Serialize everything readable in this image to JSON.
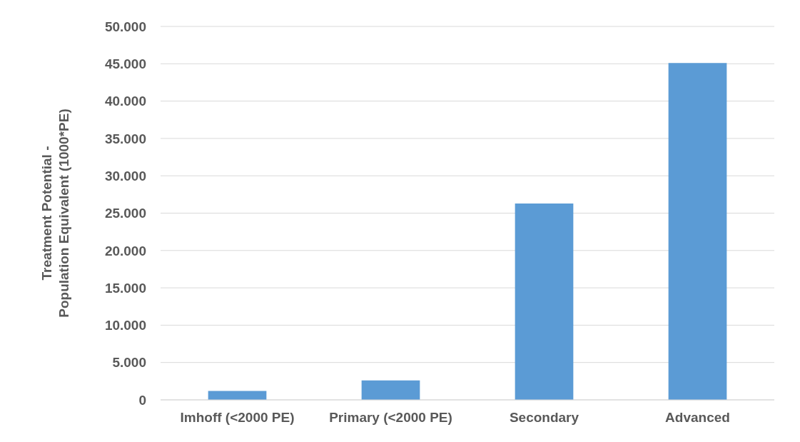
{
  "chart_data": {
    "type": "bar",
    "ylabel": "Treatment Potential -\nPopulation Equivalent (1000*PE)",
    "categories": [
      "Imhoff (<2000 PE)",
      "Primary (<2000 PE)",
      "Secondary",
      "Advanced"
    ],
    "values": [
      1200,
      2600,
      26300,
      45100
    ],
    "color": "#5b9bd5",
    "ylim": [
      0,
      50000
    ],
    "yticks": [
      {
        "value": 0,
        "label": "0"
      },
      {
        "value": 5000,
        "label": "5.000"
      },
      {
        "value": 10000,
        "label": "10.000"
      },
      {
        "value": 15000,
        "label": "15.000"
      },
      {
        "value": 20000,
        "label": "20.000"
      },
      {
        "value": 25000,
        "label": "25.000"
      },
      {
        "value": 30000,
        "label": "30.000"
      },
      {
        "value": 35000,
        "label": "35.000"
      },
      {
        "value": 40000,
        "label": "40.000"
      },
      {
        "value": 45000,
        "label": "45.000"
      },
      {
        "value": 50000,
        "label": "50.000"
      }
    ],
    "grid": "y"
  }
}
